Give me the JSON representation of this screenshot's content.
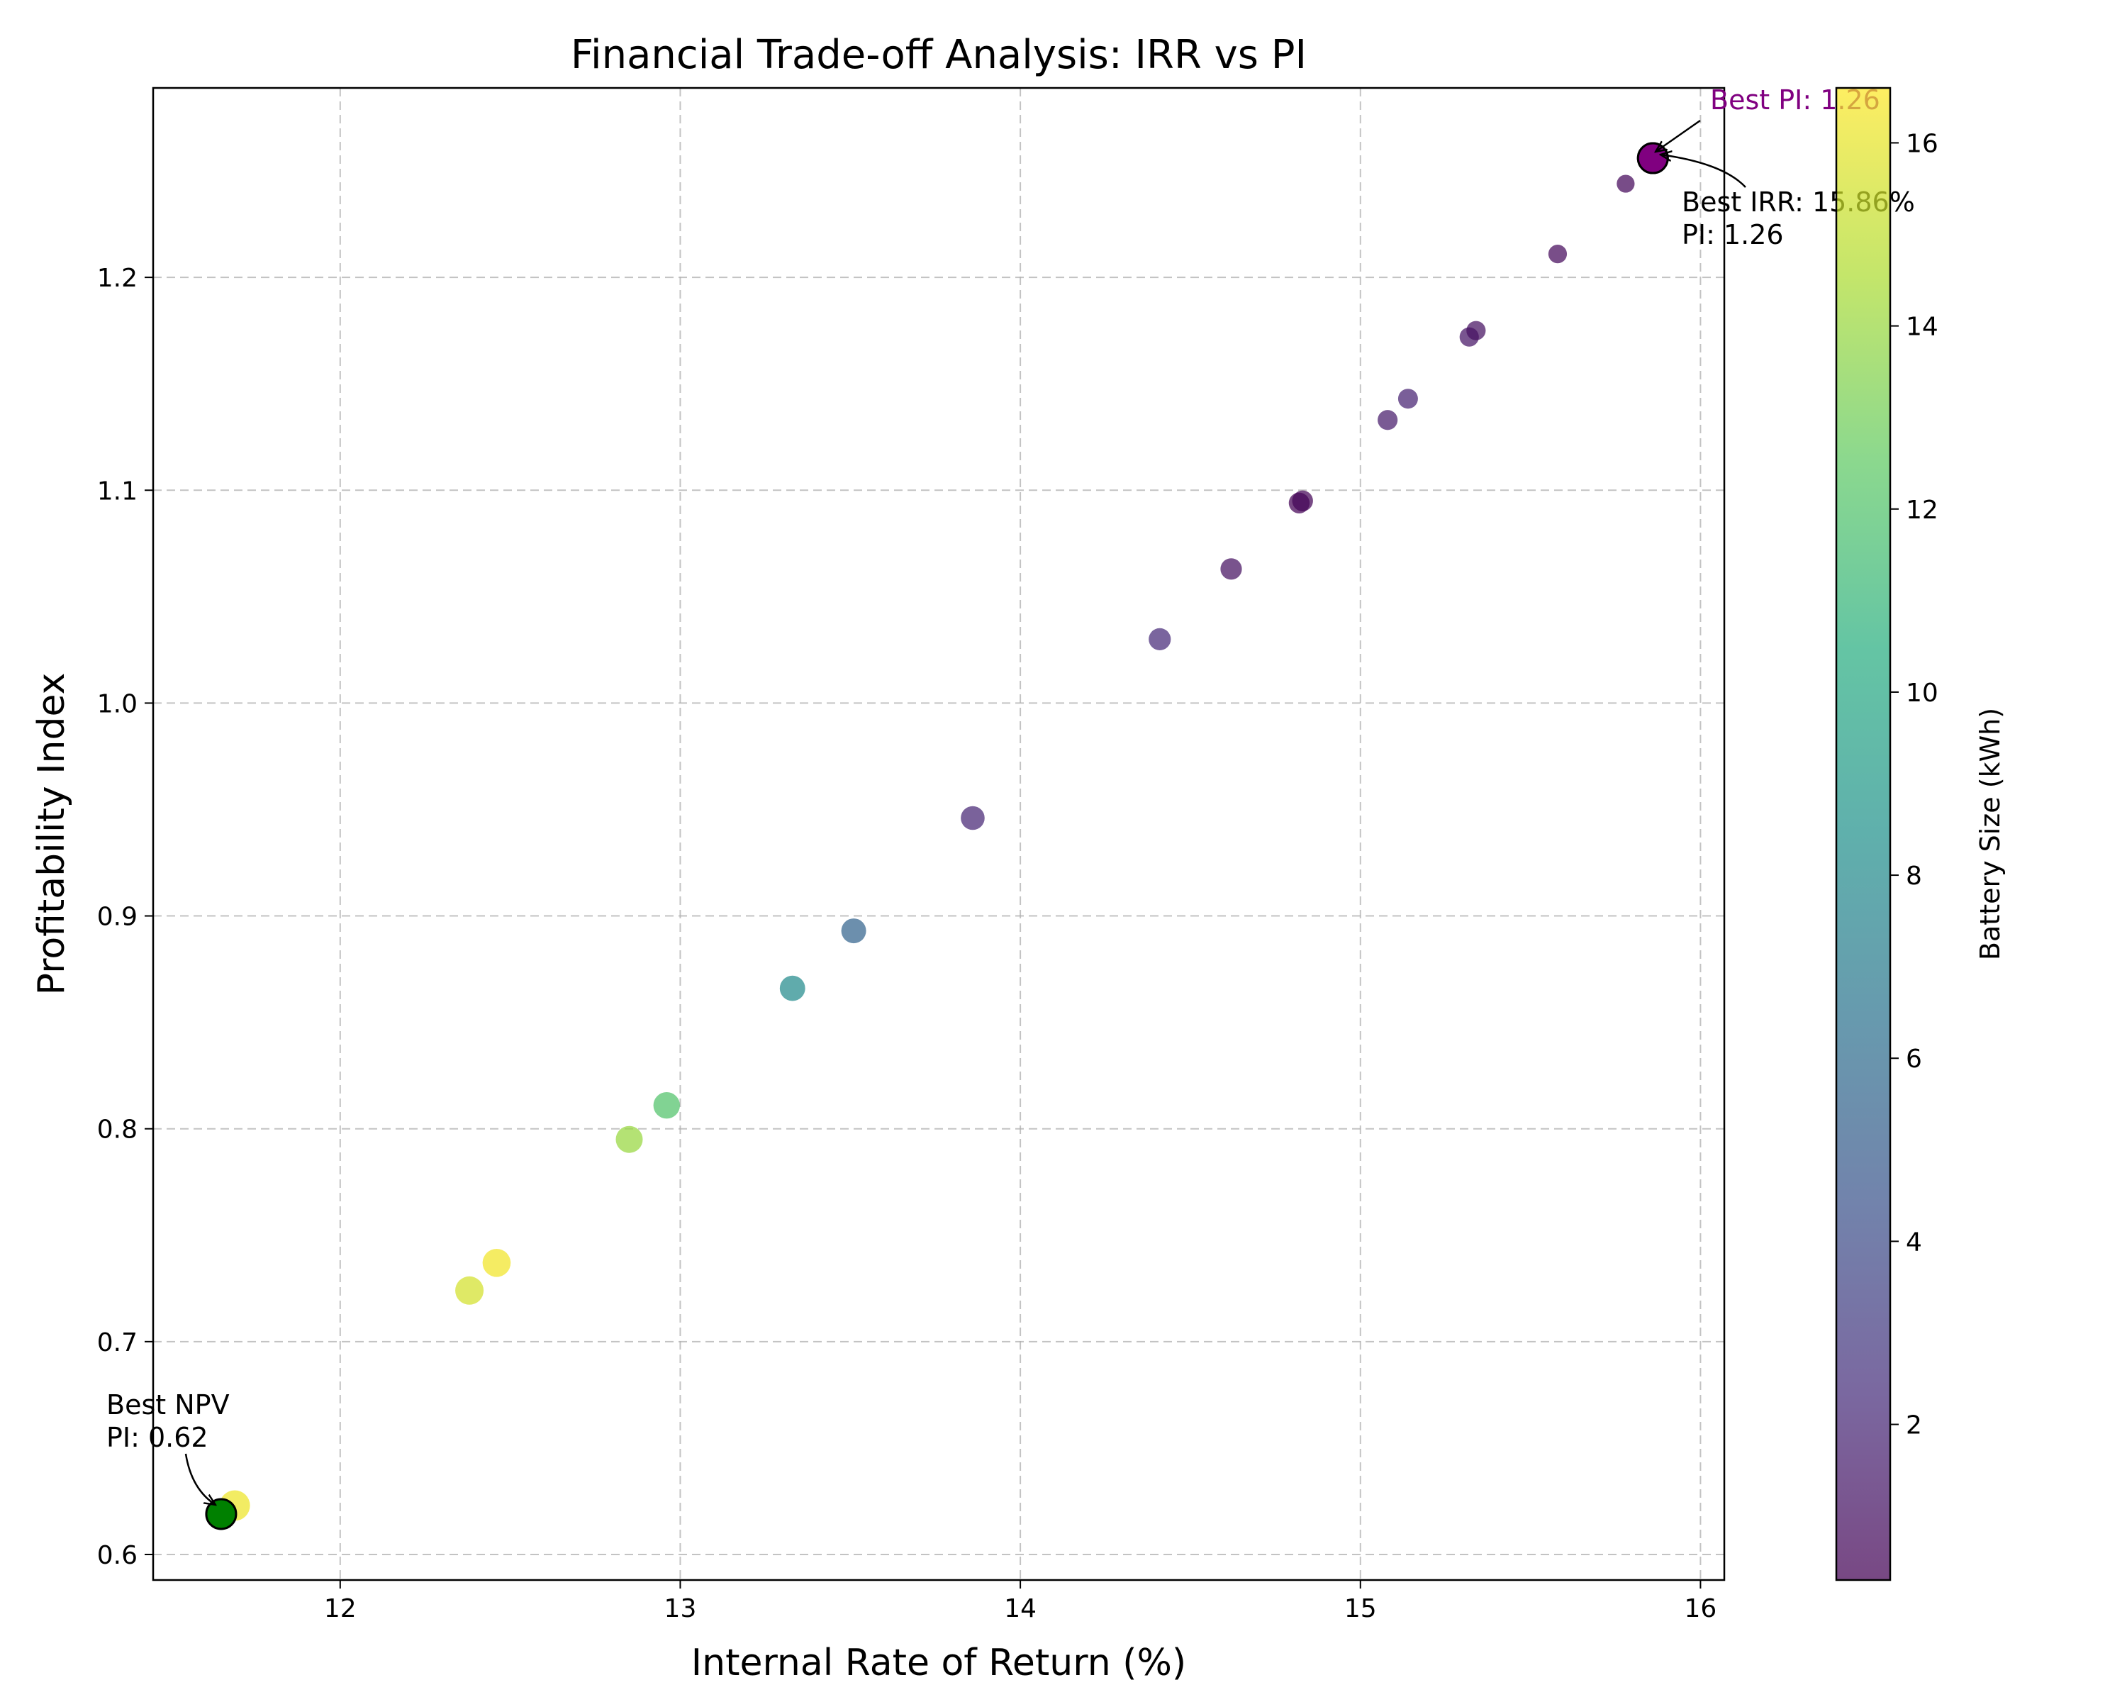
{
  "chart_data": {
    "type": "scatter",
    "title": "Financial Trade-off Analysis: IRR vs PI",
    "xlabel": "Internal Rate of Return (%)",
    "ylabel": "Profitability Index",
    "xlim": [
      11.45,
      16.07
    ],
    "ylim": [
      0.588,
      1.289
    ],
    "xticks": [
      12,
      13,
      14,
      15,
      16
    ],
    "yticks": [
      0.6,
      0.7,
      0.8,
      0.9,
      1.0,
      1.1,
      1.2
    ],
    "xtick_labels": [
      "12",
      "13",
      "14",
      "15",
      "16"
    ],
    "ytick_labels": [
      "0.6",
      "0.7",
      "0.8",
      "0.9",
      "1.0",
      "1.1",
      "1.2"
    ],
    "grid": true,
    "colormap": "viridis",
    "colorbar": {
      "label": "Battery Size (kWh)",
      "range": [
        0.3,
        16.6
      ],
      "ticks": [
        2,
        4,
        6,
        8,
        10,
        12,
        14,
        16
      ],
      "tick_labels": [
        "2",
        "4",
        "6",
        "8",
        "10",
        "12",
        "14",
        "16"
      ]
    },
    "points": [
      {
        "x": 11.65,
        "y": 0.619,
        "battery": 16.5
      },
      {
        "x": 11.69,
        "y": 0.623,
        "battery": 16.2
      },
      {
        "x": 12.38,
        "y": 0.724,
        "battery": 15.5
      },
      {
        "x": 12.46,
        "y": 0.737,
        "battery": 16.3
      },
      {
        "x": 12.85,
        "y": 0.795,
        "battery": 14.0
      },
      {
        "x": 12.96,
        "y": 0.811,
        "battery": 12.0
      },
      {
        "x": 13.33,
        "y": 0.866,
        "battery": 8.0
      },
      {
        "x": 13.51,
        "y": 0.893,
        "battery": 5.5
      },
      {
        "x": 13.86,
        "y": 0.946,
        "battery": 2.0
      },
      {
        "x": 14.41,
        "y": 1.03,
        "battery": 2.2
      },
      {
        "x": 14.62,
        "y": 1.063,
        "battery": 1.0
      },
      {
        "x": 14.82,
        "y": 1.094,
        "battery": 0.4
      },
      {
        "x": 14.83,
        "y": 1.095,
        "battery": 0.5
      },
      {
        "x": 15.08,
        "y": 1.133,
        "battery": 1.5
      },
      {
        "x": 15.14,
        "y": 1.143,
        "battery": 1.8
      },
      {
        "x": 15.32,
        "y": 1.172,
        "battery": 1.2
      },
      {
        "x": 15.34,
        "y": 1.175,
        "battery": 1.0
      },
      {
        "x": 15.58,
        "y": 1.211,
        "battery": 0.7
      },
      {
        "x": 15.78,
        "y": 1.244,
        "battery": 0.6
      },
      {
        "x": 15.86,
        "y": 1.256,
        "battery": 0.3
      }
    ],
    "highlights": [
      {
        "name": "best-pi",
        "x": 15.86,
        "y": 1.256,
        "color": "#800080"
      },
      {
        "name": "best-irr",
        "x": 15.86,
        "y": 1.256,
        "color": "#800080"
      },
      {
        "name": "best-npv",
        "x": 11.65,
        "y": 0.619,
        "color": "#008000"
      }
    ],
    "annotations": [
      {
        "name": "best-pi",
        "lines": [
          "Best PI: 1.26"
        ],
        "color": "#800080"
      },
      {
        "name": "best-irr",
        "lines": [
          "Best IRR: 15.86%",
          "PI: 1.26"
        ],
        "color": "#000000"
      },
      {
        "name": "best-npv",
        "lines": [
          "Best NPV",
          "PI: 0.62"
        ],
        "color": "#000000"
      }
    ]
  }
}
